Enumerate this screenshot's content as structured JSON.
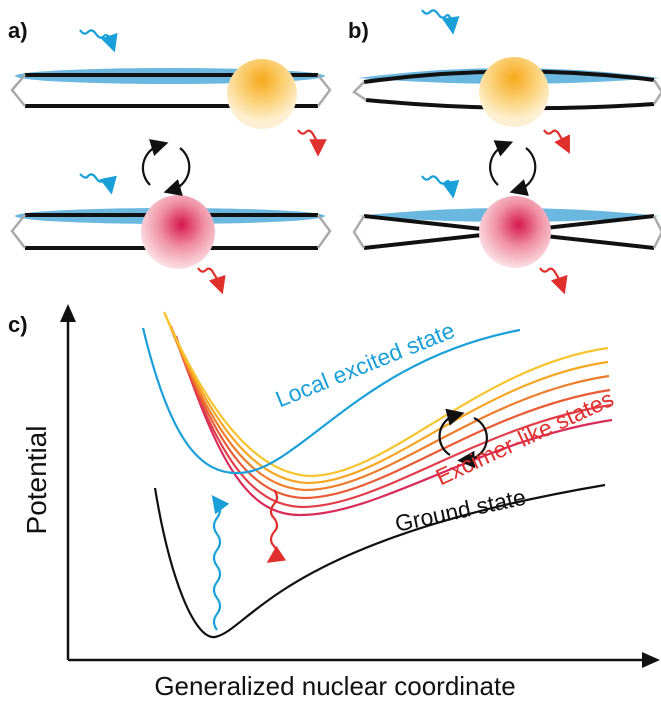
{
  "panels": {
    "a": "a)",
    "b": "b)",
    "c": "c)"
  },
  "labels": {
    "local_excited": "Local excited state",
    "excimer": "Excimer-like states",
    "ground": "Ground state"
  },
  "axes": {
    "y_label": "Potential",
    "x_label": "Generalized nuclear coordinate"
  }
}
